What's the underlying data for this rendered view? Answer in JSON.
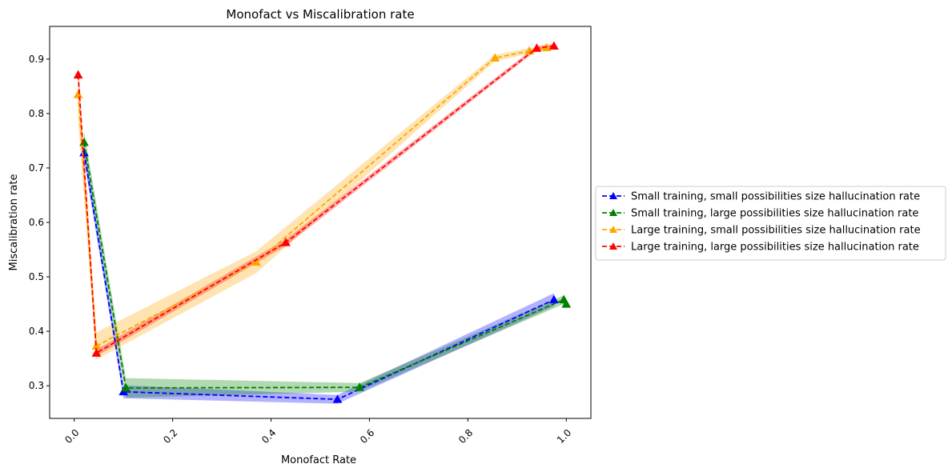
{
  "chart_data": {
    "type": "line",
    "title": "Monofact vs Miscalibration rate",
    "xlabel": "Monofact Rate",
    "ylabel": "Miscalibration rate",
    "xlim": [
      -0.05,
      1.05
    ],
    "ylim": [
      0.24,
      0.96
    ],
    "xticks": [
      0.0,
      0.2,
      0.4,
      0.6,
      0.8,
      1.0
    ],
    "xtick_labels": [
      "0.0",
      "0.2",
      "0.4",
      "0.6",
      "0.8",
      "1.0"
    ],
    "yticks": [
      0.3,
      0.4,
      0.5,
      0.6,
      0.7,
      0.8,
      0.9
    ],
    "ytick_labels": [
      "0.3",
      "0.4",
      "0.5",
      "0.6",
      "0.7",
      "0.8",
      "0.9"
    ],
    "grid": false,
    "legend_position": "outside-right",
    "series": [
      {
        "name": "Small training, small possibilities size hallucination rate",
        "color": "#0000ff",
        "marker": "triangle",
        "linestyle": "dashed",
        "x": [
          0.02,
          0.1,
          0.535,
          0.975
        ],
        "y": [
          0.728,
          0.289,
          0.275,
          0.458
        ],
        "band": [
          0.015,
          0.012,
          0.008,
          0.012
        ]
      },
      {
        "name": "Small training, large possibilities size hallucination rate",
        "color": "#008000",
        "marker": "triangle",
        "linestyle": "dashed",
        "x": [
          0.02,
          0.105,
          0.58,
          0.995,
          1.0
        ],
        "y": [
          0.747,
          0.296,
          0.297,
          0.458,
          0.45
        ],
        "band": [
          0.02,
          0.018,
          0.008,
          0.008,
          0.01
        ]
      },
      {
        "name": "Large training, small possibilities size hallucination rate",
        "color": "#ffa500",
        "marker": "triangle",
        "linestyle": "dashed",
        "x": [
          0.008,
          0.045,
          0.37,
          0.855,
          0.925,
          0.96
        ],
        "y": [
          0.835,
          0.373,
          0.527,
          0.902,
          0.915,
          0.921
        ],
        "band": [
          0.05,
          0.025,
          0.02,
          0.006,
          0.005,
          0.004
        ]
      },
      {
        "name": "Large training, large possibilities size hallucination rate",
        "color": "#ff0000",
        "marker": "triangle",
        "linestyle": "dashed",
        "x": [
          0.008,
          0.045,
          0.43,
          0.94,
          0.975
        ],
        "y": [
          0.871,
          0.36,
          0.563,
          0.92,
          0.924
        ],
        "band": [
          0.01,
          0.006,
          0.006,
          0.004,
          0.004
        ]
      }
    ]
  }
}
